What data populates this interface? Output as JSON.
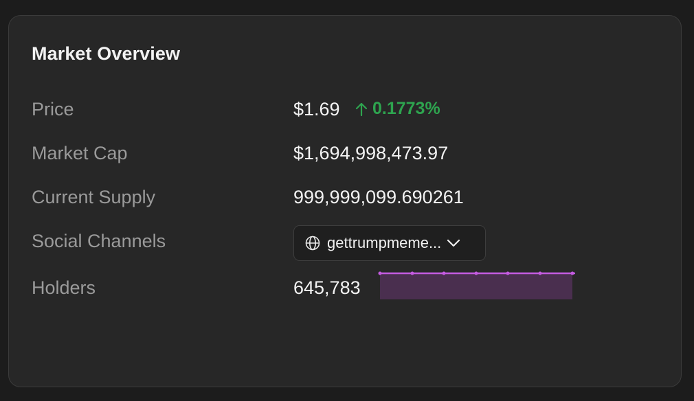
{
  "card": {
    "title": "Market Overview"
  },
  "rows": {
    "price": {
      "label": "Price",
      "value": "$1.69",
      "change": "0.1773%",
      "change_direction": "up",
      "change_color": "#2ea44f"
    },
    "market_cap": {
      "label": "Market Cap",
      "value": "$1,694,998,473.97"
    },
    "supply": {
      "label": "Current Supply",
      "value": "999,999,099.690261"
    },
    "social": {
      "label": "Social Channels",
      "selected": "gettrumpmeme...",
      "icon": "globe-icon",
      "caret_icon": "chevron-down-icon"
    },
    "holders": {
      "label": "Holders",
      "value": "645,783",
      "sparkline_color": "#c45be0",
      "sparkline_fill": "#4a2f4f"
    }
  }
}
